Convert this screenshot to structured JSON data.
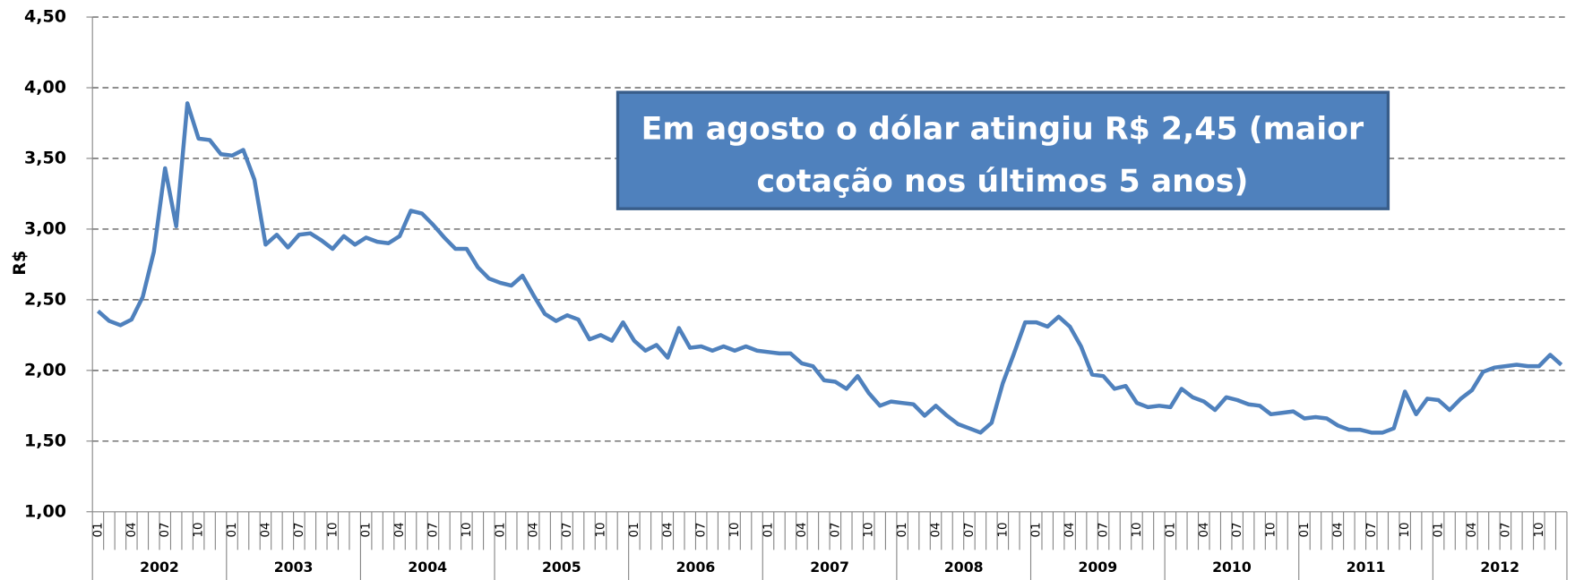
{
  "chart_data": {
    "type": "line",
    "y_label": "R$",
    "annotation": [
      "Em agosto o dólar atingiu R$ 2,45 (maior",
      "cotação nos últimos 5 anos)"
    ],
    "years": [
      "2002",
      "2003",
      "2004",
      "2005",
      "2006",
      "2007",
      "2008",
      "2009",
      "2010",
      "2011",
      "2012"
    ],
    "categories": [
      "01",
      null,
      null,
      "04",
      null,
      null,
      "07",
      null,
      null,
      "10",
      null,
      null,
      "01",
      null,
      null,
      "04",
      null,
      null,
      "07",
      null,
      null,
      "10",
      null,
      null,
      "01",
      null,
      null,
      "04",
      null,
      null,
      "07",
      null,
      null,
      "10",
      null,
      null,
      "01",
      null,
      null,
      "04",
      null,
      null,
      "07",
      null,
      null,
      "10",
      null,
      null,
      "01",
      null,
      null,
      "04",
      null,
      null,
      "07",
      null,
      null,
      "10",
      null,
      null,
      "01",
      null,
      null,
      "04",
      null,
      null,
      "07",
      null,
      null,
      "10",
      null,
      null,
      "01",
      null,
      null,
      "04",
      null,
      null,
      "07",
      null,
      null,
      "10",
      null,
      null,
      "01",
      null,
      null,
      "04",
      null,
      null,
      "07",
      null,
      null,
      "10",
      null,
      null,
      "01",
      null,
      null,
      "04",
      null,
      null,
      "07",
      null,
      null,
      "10",
      null,
      null,
      "01",
      null,
      null,
      "04",
      null,
      null,
      "07",
      null,
      null,
      "10",
      null,
      null,
      "01",
      null,
      null,
      "04",
      null,
      null,
      "07",
      null,
      null,
      "10",
      null,
      null
    ],
    "series": [
      {
        "name": "R$",
        "color": "#4f81bd",
        "values": [
          2.42,
          2.35,
          2.32,
          2.36,
          2.52,
          2.84,
          3.43,
          3.02,
          3.89,
          3.64,
          3.63,
          3.53,
          3.52,
          3.56,
          3.35,
          2.89,
          2.96,
          2.87,
          2.96,
          2.97,
          2.92,
          2.86,
          2.95,
          2.89,
          2.94,
          2.91,
          2.9,
          2.95,
          3.13,
          3.11,
          3.03,
          2.94,
          2.86,
          2.86,
          2.73,
          2.65,
          2.62,
          2.6,
          2.67,
          2.53,
          2.4,
          2.35,
          2.39,
          2.36,
          2.22,
          2.25,
          2.21,
          2.34,
          2.21,
          2.14,
          2.18,
          2.09,
          2.3,
          2.16,
          2.17,
          2.14,
          2.17,
          2.14,
          2.17,
          2.14,
          2.13,
          2.12,
          2.12,
          2.05,
          2.03,
          1.93,
          1.92,
          1.87,
          1.96,
          1.84,
          1.75,
          1.78,
          1.77,
          1.76,
          1.68,
          1.75,
          1.68,
          1.62,
          1.59,
          1.56,
          1.63,
          1.91,
          2.12,
          2.34,
          2.34,
          2.31,
          2.38,
          2.31,
          2.17,
          1.97,
          1.96,
          1.87,
          1.89,
          1.77,
          1.74,
          1.75,
          1.74,
          1.87,
          1.81,
          1.78,
          1.72,
          1.81,
          1.79,
          1.76,
          1.75,
          1.69,
          1.7,
          1.71,
          1.66,
          1.67,
          1.66,
          1.61,
          1.58,
          1.58,
          1.56,
          1.56,
          1.59,
          1.85,
          1.69,
          1.8,
          1.79,
          1.72,
          1.8,
          1.86,
          1.99,
          2.02,
          2.03,
          2.04,
          2.03,
          2.03,
          2.11,
          2.04
        ]
      }
    ],
    "ylim": [
      1,
      4.5
    ],
    "yticks": [
      {
        "value": 1,
        "label": "1,00"
      },
      {
        "value": 1.5,
        "label": "1,50"
      },
      {
        "value": 2,
        "label": "2,00"
      },
      {
        "value": 2.5,
        "label": "2,50"
      },
      {
        "value": 3,
        "label": "3,00"
      },
      {
        "value": 3.5,
        "label": "3,50"
      },
      {
        "value": 4,
        "label": "4,00"
      },
      {
        "value": 4.5,
        "label": "4,50"
      }
    ],
    "grid": true
  }
}
